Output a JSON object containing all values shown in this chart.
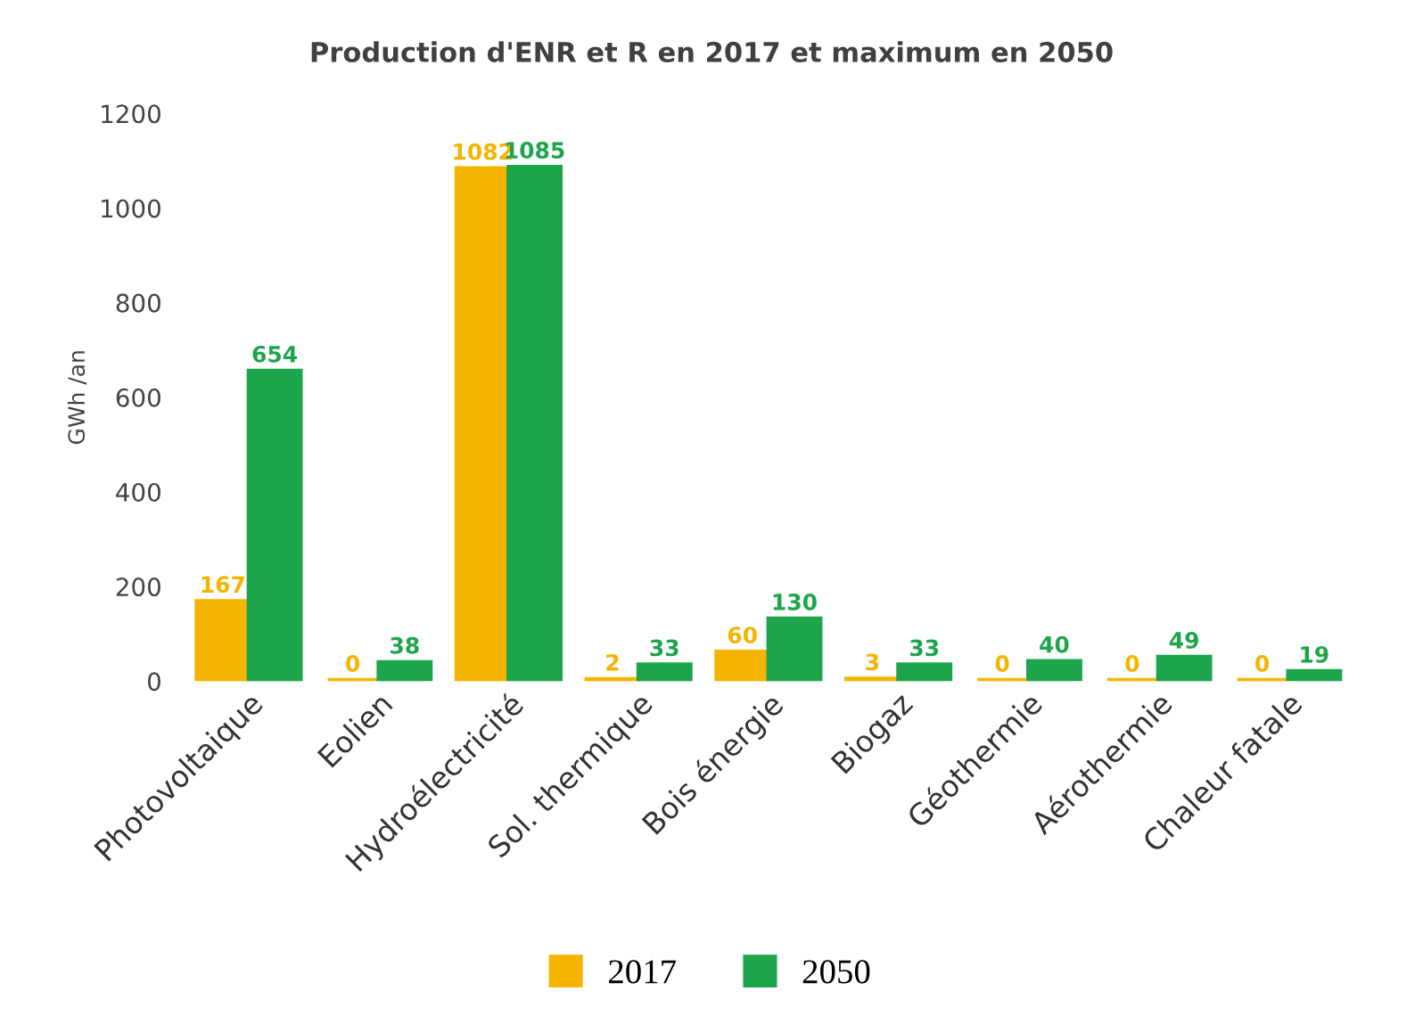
{
  "chart_data": {
    "type": "bar",
    "title": "Production d'ENR et R en 2017 et maximum en 2050",
    "ylabel": "GWh /an",
    "categories": [
      "Photovoltaique",
      "Eolien",
      "Hydroélectricité",
      "Sol. thermique",
      "Bois énergie",
      "Biogaz",
      "Géothermie",
      "Aérothermie",
      "Chaleur fatale"
    ],
    "series": [
      {
        "name": "2017",
        "color": "#f5b400",
        "values": [
          167,
          0,
          1082,
          2,
          60,
          3,
          0,
          0,
          0
        ]
      },
      {
        "name": "2050",
        "color": "#1ea54c",
        "values": [
          654,
          38,
          1085,
          33,
          130,
          33,
          40,
          49,
          19
        ]
      }
    ],
    "ylim": [
      0,
      1200
    ],
    "yticks": [
      0,
      200,
      400,
      600,
      800,
      1000,
      1200
    ],
    "data_labels": true,
    "grid": false,
    "legend": "bottom"
  }
}
